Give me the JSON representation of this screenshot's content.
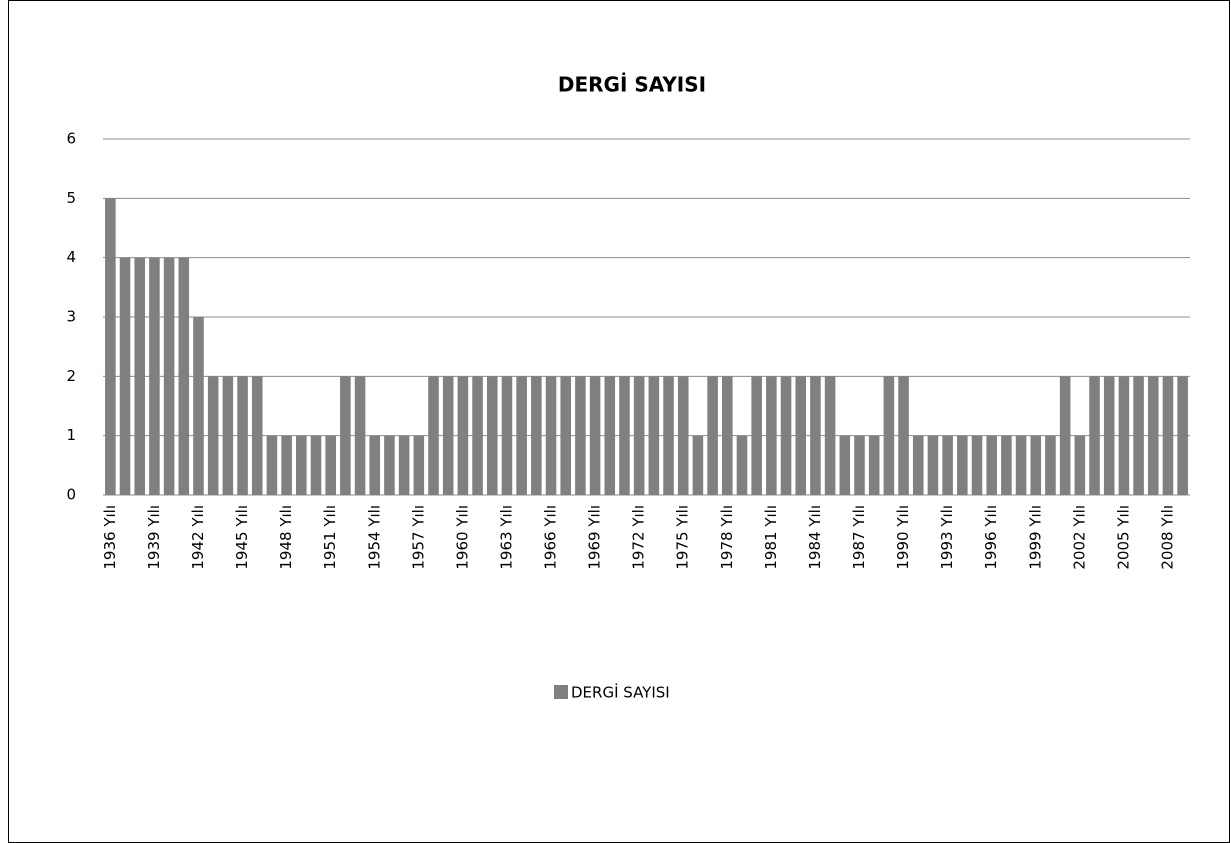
{
  "chart_data": {
    "type": "bar",
    "title": "DERGİ SAYISI",
    "categories": [
      "1936 Yılı",
      null,
      null,
      "1939 Yılı",
      null,
      null,
      "1942 Yılı",
      null,
      null,
      "1945 Yılı",
      null,
      null,
      "1948 Yılı",
      null,
      null,
      "1951 Yılı",
      null,
      null,
      "1954 Yılı",
      null,
      null,
      "1957 Yılı",
      null,
      null,
      "1960 Yılı",
      null,
      null,
      "1963 Yılı",
      null,
      null,
      "1966 Yılı",
      null,
      null,
      "1969 Yılı",
      null,
      null,
      "1972 Yılı",
      null,
      null,
      "1975 Yılı",
      null,
      null,
      "1978 Yılı",
      null,
      null,
      "1981 Yılı",
      null,
      null,
      "1984 Yılı",
      null,
      null,
      "1987 Yılı",
      null,
      null,
      "1990 Yılı",
      null,
      null,
      "1993 Yılı",
      null,
      null,
      "1996 Yılı",
      null,
      null,
      "1999 Yılı",
      null,
      null,
      "2002 Yılı",
      null,
      null,
      "2005 Yılı",
      null,
      null,
      "2008 Yılı",
      null
    ],
    "series": [
      {
        "name": "DERGİ SAYISI",
        "color": "#808080",
        "values": [
          5,
          4,
          4,
          4,
          4,
          4,
          3,
          2,
          2,
          2,
          2,
          1,
          1,
          1,
          1,
          1,
          2,
          2,
          1,
          1,
          1,
          1,
          2,
          2,
          2,
          2,
          2,
          2,
          2,
          2,
          2,
          2,
          2,
          2,
          2,
          2,
          2,
          2,
          2,
          2,
          1,
          2,
          2,
          1,
          2,
          2,
          2,
          2,
          2,
          2,
          1,
          1,
          1,
          2,
          2,
          1,
          1,
          1,
          1,
          1,
          1,
          1,
          1,
          1,
          1,
          2,
          1,
          2,
          2,
          2,
          2,
          2,
          2,
          2
        ]
      }
    ],
    "ylim": [
      0,
      6
    ],
    "yticks": [
      0,
      1,
      2,
      3,
      4,
      5,
      6
    ],
    "grid": true,
    "legend": "bottom"
  }
}
